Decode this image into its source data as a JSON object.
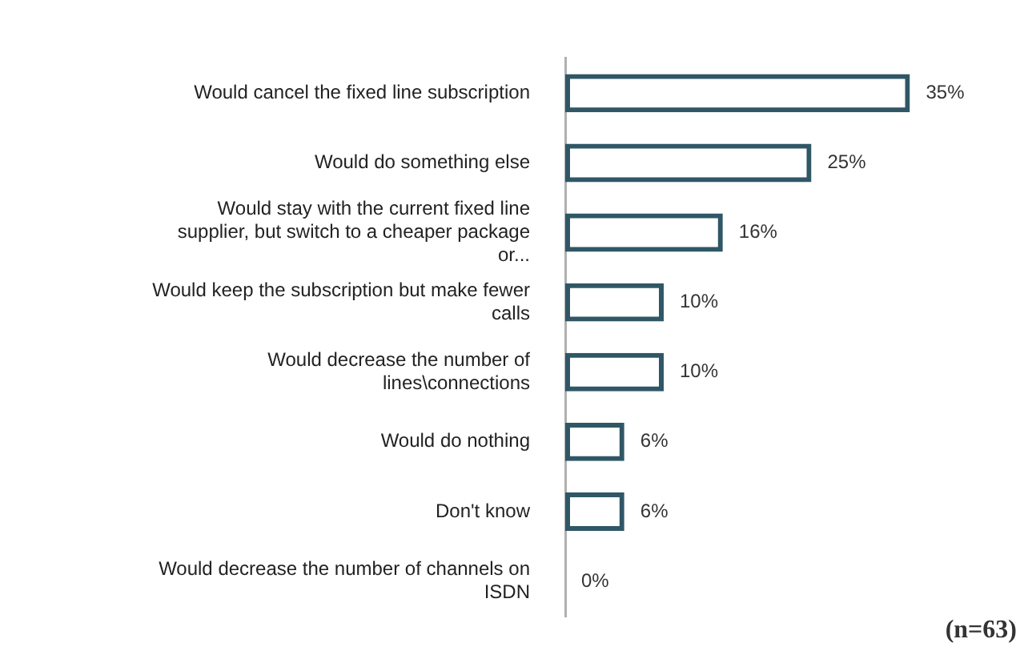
{
  "chart_data": {
    "type": "bar",
    "orientation": "horizontal",
    "categories": [
      "Would cancel the fixed line subscription",
      "Would do something else",
      "Would stay with the current fixed line supplier, but switch to a cheaper package or...",
      "Would keep the subscription but make fewer calls",
      "Would decrease the number of lines\\connections",
      "Would do nothing",
      "Don't know",
      "Would decrease the number of channels on ISDN"
    ],
    "values": [
      35,
      25,
      16,
      10,
      10,
      6,
      6,
      0
    ],
    "value_labels": [
      "35%",
      "25%",
      "16%",
      "10%",
      "10%",
      "6%",
      "6%",
      "0%"
    ],
    "color": "#2f5766",
    "grid": false,
    "legend": false,
    "annotations": [
      "(n=63)"
    ]
  }
}
